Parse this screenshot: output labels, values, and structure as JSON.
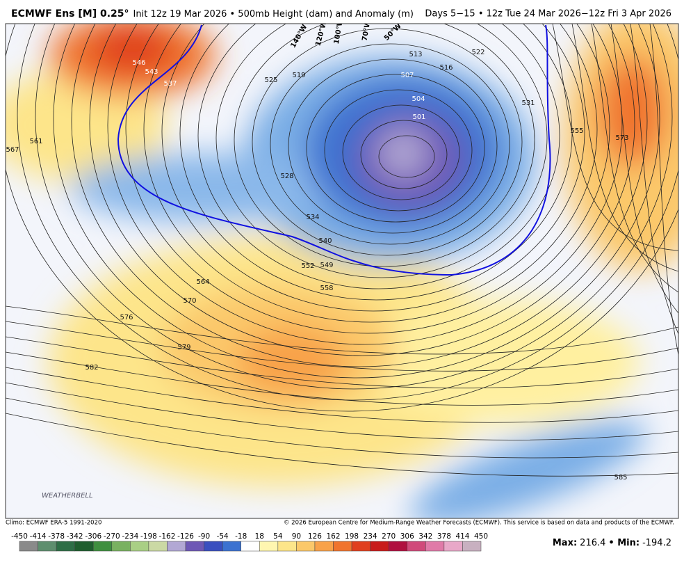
{
  "header": {
    "title": "ECMWF Ens [M] 0.25°",
    "subtitle": "Init 12z 19 Mar 2026 • 500mb Height (dam) and Anomaly (m)",
    "valid": "Days 5−15 • 12z Tue 24 Mar 2026−12z Fri 3 Apr 2026"
  },
  "map": {
    "longitudes": [
      "140°W",
      "120°W",
      "100°W",
      "70°W",
      "50°W"
    ],
    "contour_labels": [
      546,
      543,
      537,
      525,
      519,
      513,
      516,
      522,
      507,
      504,
      501,
      531,
      555,
      573,
      567,
      561,
      528,
      534,
      540,
      552,
      549,
      558,
      564,
      570,
      576,
      579,
      582,
      585
    ],
    "logo": "WEATHERBELL"
  },
  "footer": {
    "climo": "Climo: ECMWF ERA-5 1991-2020",
    "copyright": "© 2026 European Centre for Medium-Range Weather Forecasts (ECMWF). This service is based on data and products of the ECMWF."
  },
  "colorbar": {
    "ticks": [
      -450,
      -414,
      -378,
      -342,
      -306,
      -270,
      -234,
      -198,
      -162,
      -126,
      -90,
      -54,
      -18,
      18,
      54,
      90,
      126,
      162,
      198,
      234,
      270,
      306,
      342,
      378,
      414,
      450
    ],
    "colors": [
      "#8a8a8a",
      "#5e8e6e",
      "#2e6e46",
      "#1f5e2e",
      "#3f8f3f",
      "#79b160",
      "#a9cf85",
      "#cbd9a4",
      "#b2a8d4",
      "#6e58b5",
      "#3a4fbf",
      "#3c72d0",
      "#ffffff",
      "#fff6b0",
      "#fde58a",
      "#fbc86a",
      "#f8a24a",
      "#f0742e",
      "#e0401f",
      "#c81b1b",
      "#b01040",
      "#d04a7a",
      "#e07aa8",
      "#e8a8c8",
      "#c8b0c0"
    ]
  },
  "stats": {
    "max_label": "Max:",
    "max": 216.4,
    "min_label": "• Min:",
    "min": -194.2
  }
}
